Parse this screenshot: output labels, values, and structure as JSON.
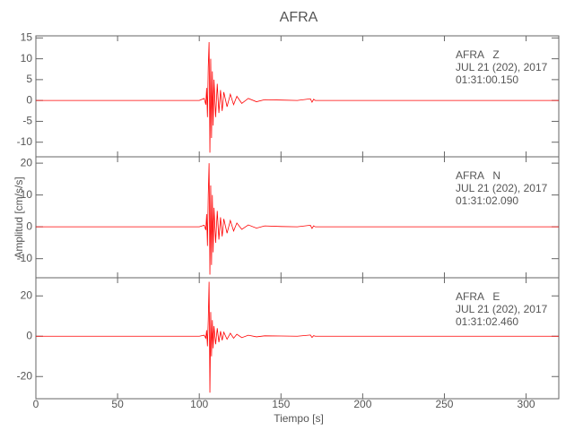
{
  "chart_data": {
    "type": "line",
    "title": "AFRA",
    "xlabel": "Tiempo [s]",
    "ylabel": "Amplitud [cm/s/s]",
    "color": "#ff0000",
    "xlim": [
      0,
      320
    ],
    "xticks": [
      0,
      50,
      100,
      150,
      200,
      250,
      300
    ],
    "x": [
      0,
      100,
      103,
      104,
      104.5,
      105,
      105.5,
      106,
      106.5,
      107,
      107.5,
      108,
      108.5,
      109,
      110,
      111,
      112,
      113,
      114,
      115,
      117,
      119,
      121,
      123,
      126,
      130,
      135,
      140,
      150,
      160,
      168,
      169,
      170,
      171,
      180,
      200,
      250,
      320
    ],
    "panels": [
      {
        "ylim": [
          -13.5,
          15.5
        ],
        "yticks": [
          -10,
          -5,
          0,
          5,
          10,
          15
        ],
        "annotations": [
          "AFRA   Z",
          "JUL 21 (202), 2017",
          "01:31:00.150"
        ],
        "values": [
          0,
          0,
          0.5,
          -1,
          3,
          -4,
          8,
          14,
          -12.5,
          10,
          -9,
          7,
          -6,
          5,
          -4,
          4,
          -3,
          2.5,
          -2.5,
          2,
          -1.5,
          1.5,
          -1,
          1,
          -0.7,
          0.5,
          -0.3,
          0.2,
          0.1,
          0,
          0.4,
          -0.4,
          0.3,
          0,
          0,
          0,
          0,
          0
        ]
      },
      {
        "ylim": [
          -16,
          22
        ],
        "yticks": [
          -10,
          0,
          10,
          20
        ],
        "annotations": [
          "AFRA   N",
          "JUL 21 (202), 2017",
          "01:31:02.090"
        ],
        "values": [
          0,
          0,
          0.5,
          -1,
          4,
          -6,
          10,
          20,
          -15,
          13,
          -12,
          10,
          -8,
          6,
          -5,
          5,
          -4,
          3,
          -3,
          2.5,
          -2,
          2,
          -1.3,
          1.2,
          -0.8,
          0.6,
          -0.4,
          0.3,
          0.1,
          0,
          0.5,
          -0.5,
          0.3,
          0,
          0,
          0,
          0,
          0
        ]
      },
      {
        "ylim": [
          -31,
          29
        ],
        "yticks": [
          -20,
          0,
          20
        ],
        "annotations": [
          "AFRA   E",
          "JUL 21 (202), 2017",
          "01:31:02.460"
        ],
        "values": [
          0,
          0,
          0.5,
          -1,
          3,
          -5,
          8,
          27,
          -28,
          12,
          -10,
          8,
          -6,
          5,
          -4,
          4,
          -3,
          2.5,
          -2,
          2,
          -1.5,
          1.5,
          -1,
          1,
          -0.7,
          0.5,
          -0.3,
          0.2,
          0.1,
          0,
          0.6,
          -0.6,
          0.3,
          0,
          0,
          0,
          0,
          0
        ]
      }
    ]
  }
}
